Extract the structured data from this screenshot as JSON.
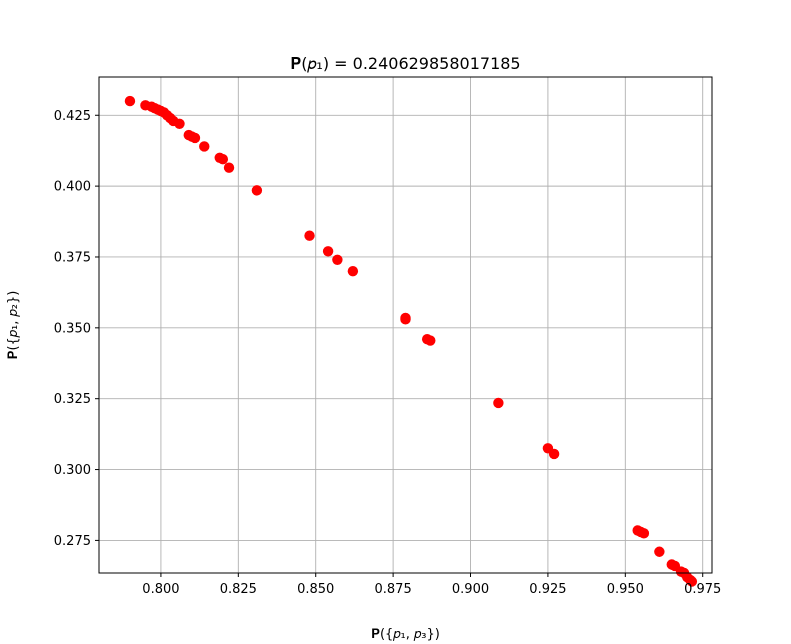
{
  "chart_data": {
    "type": "scatter",
    "title": "𝐏(𝑝₁) = 0.240629858017185",
    "xlabel": "𝐏({𝑝₁, 𝑝₃})",
    "ylabel": "𝐏({𝑝₁, 𝑝₂})",
    "xlim": [
      0.78,
      0.978
    ],
    "ylim": [
      0.2635,
      0.4385
    ],
    "xticks": [
      0.8,
      0.825,
      0.85,
      0.875,
      0.9,
      0.925,
      0.95,
      0.975
    ],
    "xtick_labels": [
      "0.800",
      "0.825",
      "0.850",
      "0.875",
      "0.900",
      "0.925",
      "0.950",
      "0.975"
    ],
    "yticks": [
      0.275,
      0.3,
      0.325,
      0.35,
      0.375,
      0.4,
      0.425
    ],
    "ytick_labels": [
      "0.275",
      "0.300",
      "0.325",
      "0.350",
      "0.375",
      "0.400",
      "0.425"
    ],
    "grid": true,
    "marker_color": "#ff0000",
    "series": [
      {
        "points": [
          [
            0.79,
            0.43
          ],
          [
            0.795,
            0.4285
          ],
          [
            0.797,
            0.428
          ],
          [
            0.798,
            0.4275
          ],
          [
            0.799,
            0.427
          ],
          [
            0.8,
            0.4265
          ],
          [
            0.801,
            0.426
          ],
          [
            0.802,
            0.425
          ],
          [
            0.803,
            0.424
          ],
          [
            0.804,
            0.423
          ],
          [
            0.806,
            0.422
          ],
          [
            0.809,
            0.418
          ],
          [
            0.81,
            0.4175
          ],
          [
            0.811,
            0.417
          ],
          [
            0.814,
            0.414
          ],
          [
            0.819,
            0.41
          ],
          [
            0.82,
            0.4095
          ],
          [
            0.822,
            0.4065
          ],
          [
            0.831,
            0.3985
          ],
          [
            0.848,
            0.3825
          ],
          [
            0.854,
            0.377
          ],
          [
            0.857,
            0.374
          ],
          [
            0.862,
            0.37
          ],
          [
            0.879,
            0.3535
          ],
          [
            0.879,
            0.353
          ],
          [
            0.886,
            0.346
          ],
          [
            0.887,
            0.3455
          ],
          [
            0.909,
            0.3235
          ],
          [
            0.925,
            0.3075
          ],
          [
            0.927,
            0.3055
          ],
          [
            0.954,
            0.2785
          ],
          [
            0.955,
            0.278
          ],
          [
            0.956,
            0.2775
          ],
          [
            0.961,
            0.271
          ],
          [
            0.965,
            0.2665
          ],
          [
            0.966,
            0.266
          ],
          [
            0.968,
            0.264
          ],
          [
            0.969,
            0.2635
          ],
          [
            0.97,
            0.262
          ],
          [
            0.971,
            0.261
          ],
          [
            0.9715,
            0.2605
          ]
        ]
      }
    ]
  }
}
